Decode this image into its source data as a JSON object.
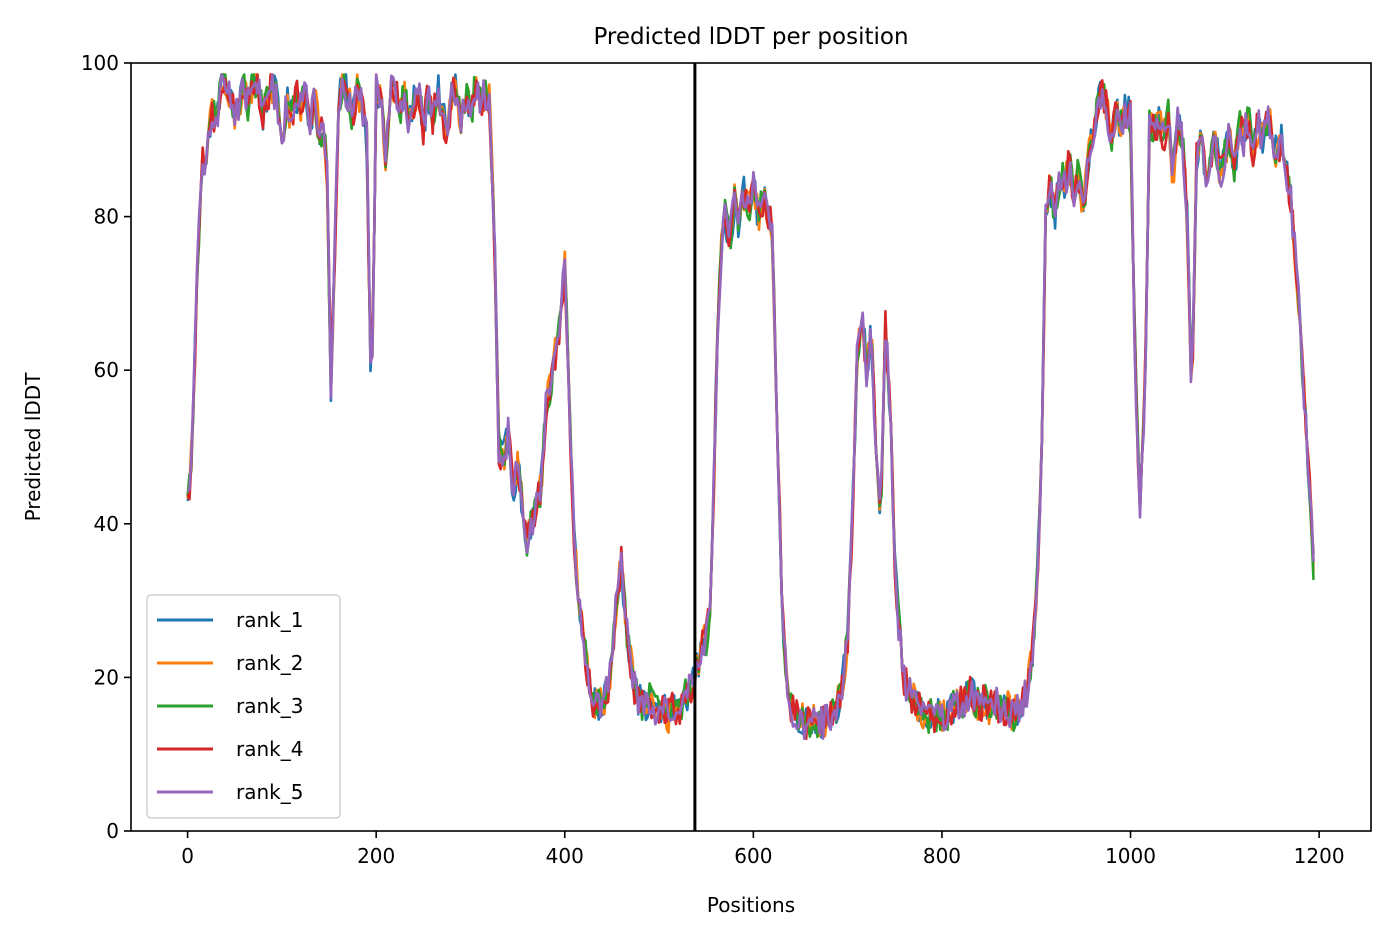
{
  "chart_data": {
    "type": "line",
    "title": "Predicted lDDT per position",
    "xlabel": "Positions",
    "ylabel": "Predicted lDDT",
    "xlim": [
      -60,
      1255
    ],
    "ylim": [
      0,
      100
    ],
    "xticks": [
      "0",
      "200",
      "400",
      "600",
      "800",
      "1000",
      "1200"
    ],
    "yticks": [
      "0",
      "20",
      "40",
      "60",
      "80",
      "100"
    ],
    "legend_position": "lower-left",
    "grid": false,
    "vline_x": 538,
    "series": [
      {
        "name": "rank_1",
        "color": "#1f77b4"
      },
      {
        "name": "rank_2",
        "color": "#ff7f0e"
      },
      {
        "name": "rank_3",
        "color": "#2ca02c"
      },
      {
        "name": "rank_4",
        "color": "#d62728"
      },
      {
        "name": "rank_5",
        "color": "#9467bd"
      }
    ],
    "profile": [
      [
        0,
        42
      ],
      [
        5,
        50
      ],
      [
        10,
        72
      ],
      [
        15,
        88
      ],
      [
        20,
        86
      ],
      [
        25,
        94
      ],
      [
        30,
        92
      ],
      [
        35,
        97
      ],
      [
        40,
        98
      ],
      [
        45,
        96
      ],
      [
        50,
        93
      ],
      [
        55,
        95
      ],
      [
        60,
        97
      ],
      [
        65,
        94
      ],
      [
        70,
        98
      ],
      [
        75,
        97
      ],
      [
        80,
        93
      ],
      [
        85,
        96
      ],
      [
        90,
        97
      ],
      [
        95,
        95
      ],
      [
        100,
        90
      ],
      [
        105,
        95
      ],
      [
        110,
        93
      ],
      [
        115,
        96
      ],
      [
        120,
        94
      ],
      [
        125,
        97
      ],
      [
        130,
        92
      ],
      [
        135,
        96
      ],
      [
        140,
        90
      ],
      [
        145,
        92
      ],
      [
        148,
        85
      ],
      [
        152,
        58
      ],
      [
        156,
        75
      ],
      [
        160,
        95
      ],
      [
        165,
        97
      ],
      [
        170,
        96
      ],
      [
        175,
        93
      ],
      [
        180,
        97
      ],
      [
        185,
        94
      ],
      [
        190,
        90
      ],
      [
        195,
        55
      ],
      [
        200,
        97
      ],
      [
        205,
        95
      ],
      [
        210,
        88
      ],
      [
        215,
        96
      ],
      [
        220,
        97
      ],
      [
        225,
        93
      ],
      [
        230,
        96
      ],
      [
        235,
        92
      ],
      [
        240,
        95
      ],
      [
        245,
        97
      ],
      [
        250,
        91
      ],
      [
        255,
        96
      ],
      [
        260,
        93
      ],
      [
        265,
        97
      ],
      [
        270,
        94
      ],
      [
        275,
        90
      ],
      [
        280,
        96
      ],
      [
        285,
        97
      ],
      [
        290,
        92
      ],
      [
        295,
        96
      ],
      [
        300,
        93
      ],
      [
        305,
        97
      ],
      [
        310,
        95
      ],
      [
        315,
        96
      ],
      [
        320,
        95
      ],
      [
        325,
        80
      ],
      [
        330,
        50
      ],
      [
        335,
        48
      ],
      [
        340,
        52
      ],
      [
        345,
        44
      ],
      [
        350,
        48
      ],
      [
        355,
        42
      ],
      [
        360,
        38
      ],
      [
        365,
        40
      ],
      [
        370,
        42
      ],
      [
        375,
        45
      ],
      [
        380,
        55
      ],
      [
        385,
        58
      ],
      [
        390,
        62
      ],
      [
        395,
        66
      ],
      [
        400,
        74
      ],
      [
        405,
        55
      ],
      [
        410,
        38
      ],
      [
        415,
        30
      ],
      [
        420,
        25
      ],
      [
        425,
        20
      ],
      [
        430,
        17
      ],
      [
        435,
        16
      ],
      [
        440,
        17
      ],
      [
        445,
        18
      ],
      [
        450,
        22
      ],
      [
        455,
        30
      ],
      [
        460,
        35
      ],
      [
        465,
        27
      ],
      [
        470,
        22
      ],
      [
        475,
        18
      ],
      [
        480,
        17
      ],
      [
        485,
        16
      ],
      [
        490,
        17
      ],
      [
        495,
        16
      ],
      [
        500,
        15
      ],
      [
        505,
        16
      ],
      [
        510,
        15
      ],
      [
        515,
        16
      ],
      [
        520,
        15
      ],
      [
        525,
        17
      ],
      [
        530,
        18
      ],
      [
        535,
        19
      ],
      [
        540,
        21
      ],
      [
        545,
        24
      ],
      [
        550,
        25
      ],
      [
        555,
        30
      ],
      [
        560,
        55
      ],
      [
        565,
        75
      ],
      [
        570,
        80
      ],
      [
        575,
        77
      ],
      [
        580,
        82
      ],
      [
        585,
        79
      ],
      [
        590,
        83
      ],
      [
        595,
        81
      ],
      [
        600,
        84
      ],
      [
        605,
        80
      ],
      [
        610,
        82
      ],
      [
        615,
        81
      ],
      [
        620,
        78
      ],
      [
        625,
        55
      ],
      [
        630,
        30
      ],
      [
        635,
        20
      ],
      [
        640,
        16
      ],
      [
        645,
        15
      ],
      [
        650,
        15
      ],
      [
        655,
        14
      ],
      [
        660,
        14
      ],
      [
        665,
        15
      ],
      [
        670,
        14
      ],
      [
        675,
        14
      ],
      [
        680,
        15
      ],
      [
        685,
        15
      ],
      [
        690,
        17
      ],
      [
        695,
        20
      ],
      [
        700,
        25
      ],
      [
        705,
        40
      ],
      [
        710,
        62
      ],
      [
        715,
        68
      ],
      [
        720,
        60
      ],
      [
        725,
        65
      ],
      [
        730,
        50
      ],
      [
        735,
        40
      ],
      [
        740,
        66
      ],
      [
        745,
        55
      ],
      [
        750,
        35
      ],
      [
        755,
        25
      ],
      [
        760,
        20
      ],
      [
        765,
        18
      ],
      [
        770,
        17
      ],
      [
        775,
        16
      ],
      [
        780,
        15
      ],
      [
        785,
        15
      ],
      [
        790,
        15
      ],
      [
        795,
        15
      ],
      [
        800,
        15
      ],
      [
        805,
        15
      ],
      [
        810,
        16
      ],
      [
        815,
        16
      ],
      [
        820,
        17
      ],
      [
        825,
        17
      ],
      [
        830,
        18
      ],
      [
        835,
        17
      ],
      [
        840,
        16
      ],
      [
        845,
        17
      ],
      [
        850,
        16
      ],
      [
        855,
        17
      ],
      [
        860,
        16
      ],
      [
        865,
        16
      ],
      [
        870,
        16
      ],
      [
        875,
        15
      ],
      [
        880,
        16
      ],
      [
        885,
        17
      ],
      [
        890,
        18
      ],
      [
        895,
        22
      ],
      [
        900,
        30
      ],
      [
        905,
        45
      ],
      [
        910,
        80
      ],
      [
        915,
        84
      ],
      [
        920,
        80
      ],
      [
        925,
        86
      ],
      [
        930,
        84
      ],
      [
        935,
        87
      ],
      [
        940,
        83
      ],
      [
        945,
        86
      ],
      [
        950,
        80
      ],
      [
        955,
        88
      ],
      [
        960,
        90
      ],
      [
        965,
        95
      ],
      [
        970,
        96
      ],
      [
        975,
        94
      ],
      [
        980,
        90
      ],
      [
        985,
        94
      ],
      [
        990,
        92
      ],
      [
        995,
        94
      ],
      [
        1000,
        93
      ],
      [
        1005,
        60
      ],
      [
        1010,
        42
      ],
      [
        1015,
        55
      ],
      [
        1020,
        92
      ],
      [
        1025,
        91
      ],
      [
        1030,
        93
      ],
      [
        1035,
        90
      ],
      [
        1040,
        93
      ],
      [
        1045,
        85
      ],
      [
        1050,
        92
      ],
      [
        1055,
        90
      ],
      [
        1060,
        80
      ],
      [
        1065,
        55
      ],
      [
        1070,
        88
      ],
      [
        1075,
        90
      ],
      [
        1080,
        86
      ],
      [
        1085,
        88
      ],
      [
        1090,
        90
      ],
      [
        1095,
        85
      ],
      [
        1100,
        88
      ],
      [
        1105,
        91
      ],
      [
        1110,
        86
      ],
      [
        1115,
        92
      ],
      [
        1120,
        90
      ],
      [
        1125,
        93
      ],
      [
        1130,
        88
      ],
      [
        1135,
        92
      ],
      [
        1140,
        90
      ],
      [
        1145,
        93
      ],
      [
        1150,
        91
      ],
      [
        1155,
        88
      ],
      [
        1160,
        90
      ],
      [
        1165,
        86
      ],
      [
        1170,
        82
      ],
      [
        1175,
        75
      ],
      [
        1180,
        65
      ],
      [
        1185,
        55
      ],
      [
        1190,
        45
      ],
      [
        1195,
        32
      ]
    ]
  }
}
